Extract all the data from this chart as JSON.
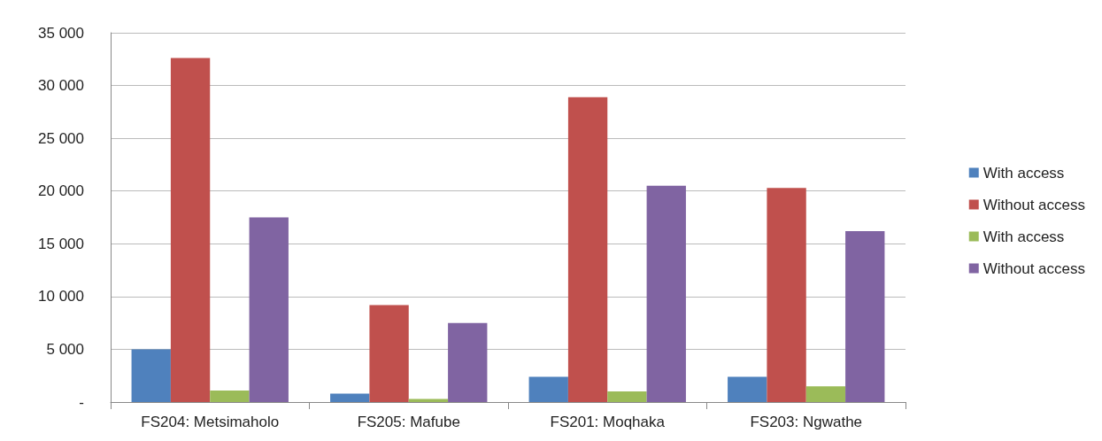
{
  "chart_data": {
    "type": "bar",
    "categories": [
      "FS204: Metsimaholo",
      "FS205: Mafube",
      "FS201: Moqhaka",
      "FS203: Ngwathe"
    ],
    "series": [
      {
        "name": "With access",
        "color": "#4f81bd",
        "values": [
          5000,
          800,
          2400,
          2400
        ]
      },
      {
        "name": "Without access",
        "color": "#c0504d",
        "values": [
          32600,
          9200,
          28900,
          20300
        ]
      },
      {
        "name": "With access",
        "color": "#9bbb59",
        "values": [
          1100,
          300,
          1000,
          1500
        ]
      },
      {
        "name": "Without access",
        "color": "#8064a2",
        "values": [
          17500,
          7500,
          20500,
          16200
        ]
      }
    ],
    "ylim": [
      0,
      35000
    ],
    "yticks": [
      {
        "value": 0,
        "label": "-"
      },
      {
        "value": 5000,
        "label": "5 000"
      },
      {
        "value": 10000,
        "label": "10 000"
      },
      {
        "value": 15000,
        "label": "15 000"
      },
      {
        "value": 20000,
        "label": "20 000"
      },
      {
        "value": 25000,
        "label": "25 000"
      },
      {
        "value": 30000,
        "label": "30 000"
      },
      {
        "value": 35000,
        "label": "35 000"
      }
    ],
    "grid": "y",
    "legend": "right"
  }
}
